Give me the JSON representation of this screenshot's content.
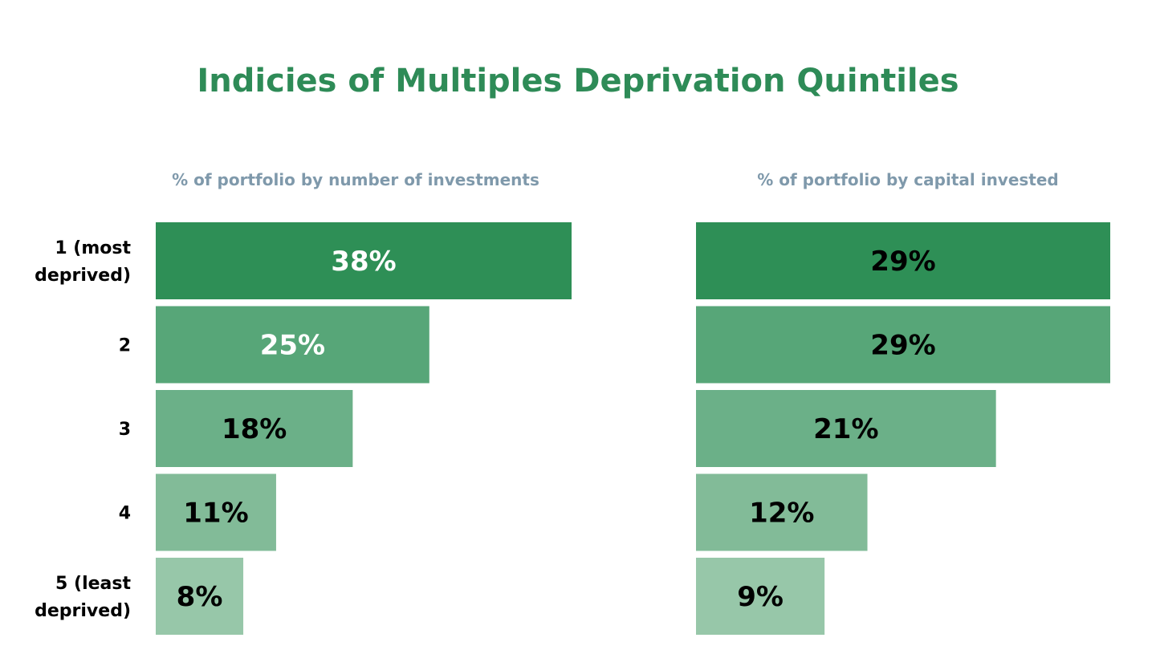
{
  "title": "Indicies of Multiples Deprivation Quintiles",
  "category_labels": [
    [
      "1 (most",
      "deprived)"
    ],
    [
      "2"
    ],
    [
      "3"
    ],
    [
      "4"
    ],
    [
      "5 (least",
      "deprived)"
    ]
  ],
  "colors": [
    "#2e8f56",
    "#57a678",
    "#6bb088",
    "#82bb98",
    "#97c7a9"
  ],
  "value_text_colors": {
    "left": [
      "#ffffff",
      "#ffffff",
      "#000000",
      "#000000",
      "#000000"
    ],
    "right": [
      "#000000",
      "#000000",
      "#000000",
      "#000000",
      "#000000"
    ]
  },
  "chart_data": [
    {
      "type": "bar",
      "orientation": "horizontal",
      "title": "% of portfolio by number of investments",
      "categories": [
        "1 (most deprived)",
        "2",
        "3",
        "4",
        "5 (least deprived)"
      ],
      "values": [
        38,
        25,
        18,
        11,
        8
      ],
      "data_labels": [
        "38%",
        "25%",
        "18%",
        "11%",
        "8%"
      ],
      "unit": "%",
      "xlim": [
        0,
        38
      ],
      "grid": false
    },
    {
      "type": "bar",
      "orientation": "horizontal",
      "title": "% of portfolio by capital invested",
      "categories": [
        "1 (most deprived)",
        "2",
        "3",
        "4",
        "5 (least deprived)"
      ],
      "values": [
        29,
        29,
        21,
        12,
        9
      ],
      "data_labels": [
        "29%",
        "29%",
        "21%",
        "12%",
        "9%"
      ],
      "unit": "%",
      "xlim": [
        0,
        29
      ],
      "grid": false
    }
  ]
}
